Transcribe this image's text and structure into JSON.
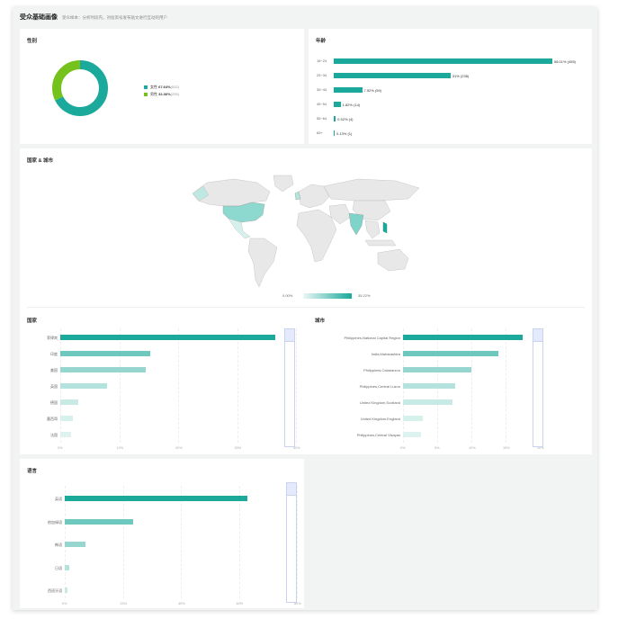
{
  "header": {
    "title": "受众基础画像",
    "subtitle": "受众样本：分析时段内，对投资号发布贴文进行互动的用户"
  },
  "colors": {
    "teal": "#1aa99b",
    "green": "#74c21b"
  },
  "gender": {
    "title": "性别",
    "items": [
      {
        "name": "女性",
        "percent": "67.64%",
        "count": "(532)",
        "value": 67.64
      },
      {
        "name": "男性",
        "percent": "32.36%",
        "count": "(255)",
        "value": 32.36
      }
    ]
  },
  "age": {
    "title": "年龄",
    "items": [
      {
        "label": "18~24",
        "value": 58.01,
        "text": "58.01% (455)"
      },
      {
        "label": "25~34",
        "value": 31,
        "text": "31% (238)"
      },
      {
        "label": "35~44",
        "value": 7.52,
        "text": "7.52% (59)"
      },
      {
        "label": "45~54",
        "value": 1.82,
        "text": "1.82% (14)"
      },
      {
        "label": "55~64",
        "value": 0.52,
        "text": "0.52% (4)"
      },
      {
        "label": "65+",
        "value": 0.13,
        "text": "0.13% (1)"
      }
    ]
  },
  "map": {
    "title": "国家 & 城市",
    "range_min": "0.00%",
    "range_max": "35.22%"
  },
  "country": {
    "title": "国家",
    "ticks": [
      "0%",
      "10%",
      "20%",
      "30%",
      "40%"
    ],
    "items": [
      {
        "label": "菲律宾",
        "value": 36.5
      },
      {
        "label": "印度",
        "value": 15.3
      },
      {
        "label": "美国",
        "value": 14.5
      },
      {
        "label": "英国",
        "value": 8.0
      },
      {
        "label": "德国",
        "value": 3.1
      },
      {
        "label": "墨西哥",
        "value": 2.2
      },
      {
        "label": "法国",
        "value": 1.9
      }
    ]
  },
  "city": {
    "title": "城市",
    "ticks": [
      "0%",
      "5%",
      "10%",
      "15%",
      "20%"
    ],
    "items": [
      {
        "label": "Philippines,National Capital Region",
        "value": 17.5
      },
      {
        "label": "India,Maharashtra",
        "value": 14.0
      },
      {
        "label": "Philippines,Calabarzon",
        "value": 10.0
      },
      {
        "label": "Philippines,Central Luzon",
        "value": 7.6
      },
      {
        "label": "United Kingdom,Scotland",
        "value": 7.3
      },
      {
        "label": "United Kingdom,England",
        "value": 2.9
      },
      {
        "label": "Philippines,Central Visayas",
        "value": 2.6
      }
    ]
  },
  "language": {
    "title": "语言",
    "ticks": [
      "0%",
      "20%",
      "40%",
      "60%",
      "80%"
    ],
    "items": [
      {
        "label": "英语",
        "value": 63.0
      },
      {
        "label": "他加禄语",
        "value": 23.5
      },
      {
        "label": "韩语",
        "value": 7.2
      },
      {
        "label": "日语",
        "value": 1.4
      },
      {
        "label": "西班牙语",
        "value": 0.8
      }
    ]
  }
}
